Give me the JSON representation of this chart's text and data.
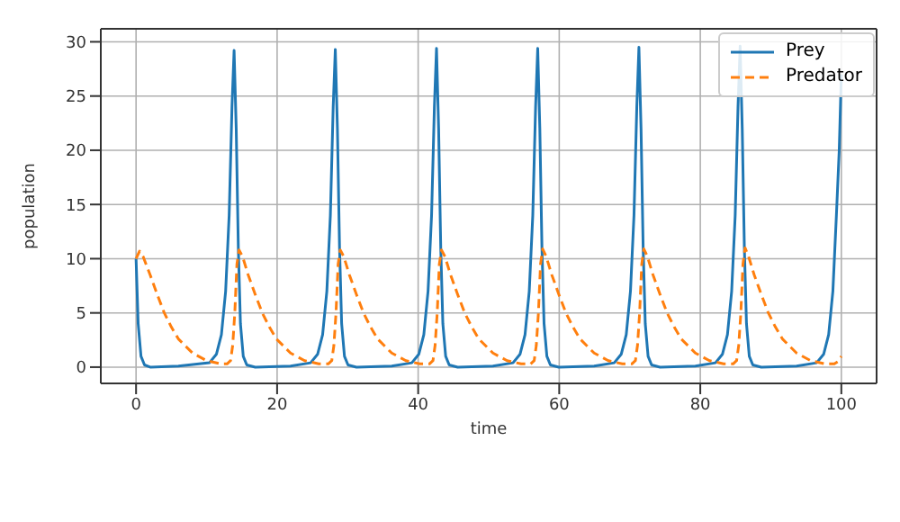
{
  "chart_data": {
    "type": "line",
    "xlabel": "time",
    "ylabel": "population",
    "xlim": [
      -5,
      105
    ],
    "xticks": [
      0,
      20,
      40,
      60,
      80,
      100
    ],
    "ylim": [
      -1.5,
      31.2
    ],
    "yticks": [
      0,
      5,
      10,
      15,
      20,
      25,
      30
    ],
    "grid": true,
    "legend": "top right",
    "marker": "none",
    "series": [
      {
        "name": "Prey",
        "color": "#1f77b4",
        "line_style": "solid",
        "x": [
          0,
          0.3,
          0.7,
          1.2,
          2,
          6,
          10.4,
          11.4,
          12.1,
          12.7,
          13.2,
          13.6,
          13.9,
          14.2,
          14.5,
          14.8,
          15.2,
          15.7,
          16.9,
          21.9,
          24.75,
          25.75,
          26.45,
          27.05,
          27.55,
          27.95,
          28.25,
          28.55,
          28.85,
          29.15,
          29.55,
          30.05,
          31.25,
          36.25,
          39.1,
          40.1,
          40.8,
          41.4,
          41.9,
          42.3,
          42.6,
          42.9,
          43.2,
          43.5,
          43.9,
          44.4,
          45.6,
          50.6,
          53.45,
          54.45,
          55.15,
          55.75,
          56.25,
          56.65,
          56.95,
          57.25,
          57.55,
          57.85,
          58.25,
          58.75,
          59.95,
          64.95,
          67.8,
          68.8,
          69.5,
          70.1,
          70.6,
          71.0,
          71.3,
          71.6,
          71.9,
          72.2,
          72.6,
          73.1,
          74.3,
          79.3,
          82.15,
          83.15,
          83.85,
          84.45,
          84.95,
          85.35,
          85.65,
          85.95,
          86.25,
          86.55,
          86.95,
          87.45,
          88.65,
          93.65,
          96.5,
          97.5,
          98.2,
          98.8,
          99.3,
          99.7,
          100
        ],
        "values": [
          10,
          4,
          1,
          0.2,
          0,
          0.1,
          0.4,
          1.2,
          3,
          7,
          14,
          24,
          29.2,
          22,
          11,
          4,
          1,
          0.2,
          0,
          0.1,
          0.4,
          1.2,
          3,
          7,
          14,
          24,
          29.3,
          22,
          11,
          4,
          1,
          0.2,
          0,
          0.1,
          0.4,
          1.2,
          3,
          7,
          14,
          24,
          29.4,
          22,
          11,
          4,
          1,
          0.2,
          0,
          0.1,
          0.4,
          1.2,
          3,
          7,
          14,
          24,
          29.4,
          22,
          11,
          4,
          1,
          0.2,
          0,
          0.1,
          0.4,
          1.2,
          3,
          7,
          14,
          24,
          29.5,
          22,
          11,
          4,
          1,
          0.2,
          0,
          0.1,
          0.4,
          1.2,
          3,
          7,
          14,
          24,
          29.6,
          22,
          11,
          4,
          1,
          0.2,
          0,
          0.1,
          0.4,
          1.2,
          3,
          7,
          14,
          20,
          27
        ]
      },
      {
        "name": "Predator",
        "color": "#ff7f0e",
        "line_style": "dashed",
        "x": [
          0,
          0.5,
          1,
          2,
          3,
          4,
          5,
          6,
          8,
          10,
          12,
          12.9,
          13.4,
          13.7,
          14.0,
          14.3,
          14.6,
          15.1,
          15.9,
          16.9,
          17.9,
          18.9,
          19.9,
          21.9,
          23.9,
          25.9,
          27.25,
          27.75,
          28.05,
          28.35,
          28.65,
          28.95,
          29.45,
          30.25,
          31.25,
          32.25,
          33.25,
          34.25,
          36.25,
          38.25,
          40.25,
          41.6,
          42.1,
          42.4,
          42.7,
          43.0,
          43.3,
          43.8,
          44.6,
          45.6,
          46.6,
          47.6,
          48.6,
          50.6,
          52.6,
          54.6,
          55.95,
          56.45,
          56.75,
          57.05,
          57.35,
          57.65,
          58.15,
          58.95,
          59.95,
          60.95,
          61.95,
          62.95,
          64.95,
          66.95,
          68.95,
          70.3,
          70.8,
          71.1,
          71.4,
          71.7,
          72.0,
          72.5,
          73.3,
          74.3,
          75.3,
          76.3,
          77.3,
          79.3,
          81.3,
          83.3,
          84.65,
          85.15,
          85.45,
          85.75,
          86.05,
          86.35,
          86.85,
          87.65,
          88.65,
          89.65,
          90.65,
          91.65,
          93.65,
          95.65,
          97.65,
          99.0,
          99.5,
          100
        ],
        "values": [
          10,
          10.7,
          10.2,
          8.5,
          6.7,
          5,
          3.7,
          2.6,
          1.3,
          0.6,
          0.3,
          0.3,
          0.6,
          2,
          5,
          9.5,
          10.8,
          10.2,
          8.5,
          6.7,
          5,
          3.7,
          2.6,
          1.3,
          0.6,
          0.3,
          0.3,
          0.6,
          2,
          5,
          9.5,
          10.8,
          10.2,
          8.5,
          6.7,
          5,
          3.7,
          2.6,
          1.3,
          0.6,
          0.3,
          0.3,
          0.6,
          2,
          5,
          9.5,
          10.8,
          10.2,
          8.5,
          6.7,
          5,
          3.7,
          2.6,
          1.3,
          0.6,
          0.3,
          0.3,
          0.6,
          2,
          5,
          9.5,
          10.9,
          10.2,
          8.5,
          6.7,
          5,
          3.7,
          2.6,
          1.3,
          0.6,
          0.3,
          0.3,
          0.6,
          2,
          5,
          9.5,
          10.9,
          10.2,
          8.5,
          6.7,
          5,
          3.7,
          2.6,
          1.3,
          0.6,
          0.3,
          0.3,
          0.6,
          2,
          5,
          9.5,
          11,
          10.2,
          8.5,
          6.7,
          5,
          3.7,
          2.6,
          1.3,
          0.6,
          0.3,
          0.3,
          0.5,
          1
        ]
      }
    ]
  }
}
